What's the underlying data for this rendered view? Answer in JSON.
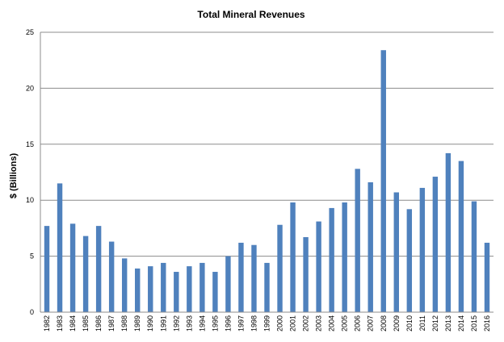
{
  "chart_data": {
    "type": "bar",
    "title": "Total Mineral Revenues",
    "xlabel": "",
    "ylabel": "$ (Billions)",
    "ylim": [
      0,
      25
    ],
    "yticks": [
      0,
      5,
      10,
      15,
      20,
      25
    ],
    "grid": true,
    "legend": "none",
    "bar_color": "#4f81bd",
    "categories": [
      "1982",
      "1983",
      "1984",
      "1985",
      "1986",
      "1987",
      "1988",
      "1989",
      "1990",
      "1991",
      "1992",
      "1993",
      "1994",
      "1995",
      "1996",
      "1997",
      "1998",
      "1999",
      "2000",
      "2001",
      "2002",
      "2003",
      "2004",
      "2005",
      "2006",
      "2007",
      "2008",
      "2009",
      "2010",
      "2011",
      "2012",
      "2013",
      "2014",
      "2015",
      "2016"
    ],
    "values": [
      7.7,
      11.5,
      7.9,
      6.8,
      7.7,
      6.3,
      4.8,
      3.9,
      4.1,
      4.4,
      3.6,
      4.1,
      4.4,
      3.6,
      5.0,
      6.2,
      6.0,
      4.4,
      7.8,
      9.8,
      6.7,
      8.1,
      9.3,
      9.8,
      12.8,
      11.6,
      23.4,
      10.7,
      9.2,
      11.1,
      12.1,
      14.2,
      13.5,
      9.9,
      6.2
    ]
  }
}
